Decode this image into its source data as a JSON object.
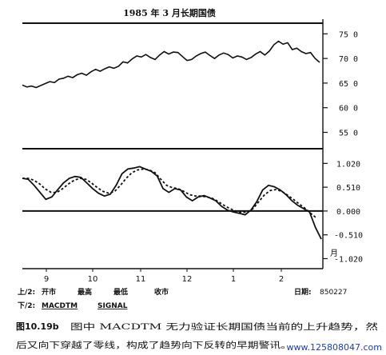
{
  "chart_data": [
    {
      "type": "line",
      "title": "1985 年 3 月长期国债",
      "ylabel": "",
      "y_ticks": [
        "75 0",
        "70 0",
        "65 0",
        "60 0",
        "55 0"
      ],
      "y_tick_values": [
        75,
        70,
        65,
        60,
        55
      ],
      "ylim": [
        52,
        77
      ],
      "series": [
        {
          "values": [
            64.6,
            64.2,
            64.4,
            64.1,
            64.5,
            64.9,
            65.3,
            65.1,
            65.8,
            66.0,
            66.4,
            66.1,
            66.7,
            67.0,
            66.6,
            67.3,
            67.8,
            67.4,
            67.9,
            68.3,
            68.0,
            68.4,
            69.3,
            69.1,
            69.9,
            70.5,
            70.3,
            70.8,
            70.2,
            69.8,
            70.7,
            71.4,
            70.9,
            71.3,
            71.2,
            70.4,
            69.6,
            69.8,
            70.5,
            71.0,
            71.3,
            70.6,
            70.0,
            70.7,
            71.1,
            70.8,
            70.1,
            70.5,
            70.3,
            69.8,
            70.2,
            70.9,
            71.4,
            70.7,
            71.5,
            72.8,
            73.5,
            72.9,
            73.2,
            71.8,
            72.1,
            71.4,
            71.0,
            71.2,
            70.0,
            69.2
          ]
        }
      ]
    },
    {
      "type": "line",
      "y_ticks": [
        "1.020",
        "0.510",
        "0.000",
        "-0.510",
        "-1.020"
      ],
      "y_tick_values": [
        1.02,
        0.51,
        0.0,
        -0.51,
        -1.02
      ],
      "ylim": [
        -1.2,
        1.3
      ],
      "zero_line": true,
      "series": [
        {
          "name": "MACDTM",
          "style": "solid",
          "values": [
            0.7,
            0.68,
            0.55,
            0.4,
            0.25,
            0.3,
            0.45,
            0.6,
            0.7,
            0.74,
            0.72,
            0.6,
            0.48,
            0.38,
            0.32,
            0.36,
            0.55,
            0.8,
            0.9,
            0.92,
            0.95,
            0.9,
            0.85,
            0.75,
            0.48,
            0.4,
            0.48,
            0.45,
            0.3,
            0.22,
            0.3,
            0.33,
            0.28,
            0.22,
            0.1,
            0.02,
            -0.02,
            -0.05,
            -0.08,
            0.02,
            0.2,
            0.45,
            0.55,
            0.52,
            0.45,
            0.35,
            0.22,
            0.12,
            0.05,
            -0.02,
            -0.35,
            -0.6
          ]
        },
        {
          "name": "SIGNAL",
          "style": "dashed",
          "values": [
            0.7,
            0.7,
            0.66,
            0.58,
            0.47,
            0.4,
            0.4,
            0.48,
            0.58,
            0.66,
            0.7,
            0.68,
            0.6,
            0.5,
            0.42,
            0.38,
            0.42,
            0.55,
            0.7,
            0.82,
            0.88,
            0.9,
            0.88,
            0.82,
            0.68,
            0.55,
            0.5,
            0.48,
            0.42,
            0.35,
            0.32,
            0.32,
            0.3,
            0.27,
            0.2,
            0.12,
            0.05,
            0.0,
            -0.03,
            -0.02,
            0.05,
            0.2,
            0.35,
            0.44,
            0.46,
            0.42,
            0.34,
            0.25,
            0.15,
            0.06,
            -0.05,
            -0.15
          ]
        }
      ]
    }
  ],
  "x_axis": {
    "ticks": [
      "9",
      "10",
      "11",
      "12",
      "1",
      "2"
    ],
    "end_label": "月"
  },
  "legend": {
    "upper_label": "上/2:",
    "upper_items": [
      "开市",
      "最高",
      "最低",
      "收市"
    ],
    "lower_label": "下/2:",
    "lower_items": [
      "MACDTM",
      "SIGNAL"
    ],
    "date_label": "日期:",
    "date_value": "850227"
  },
  "caption": {
    "number": "图10.19b",
    "line1": "图中 MACDTM 无力验证长期国债当前的上升趋势，然",
    "line2": "后又向下穿越了零线，构成了趋势向下反转的早期警讯。"
  },
  "watermark": "www.125808047.com"
}
